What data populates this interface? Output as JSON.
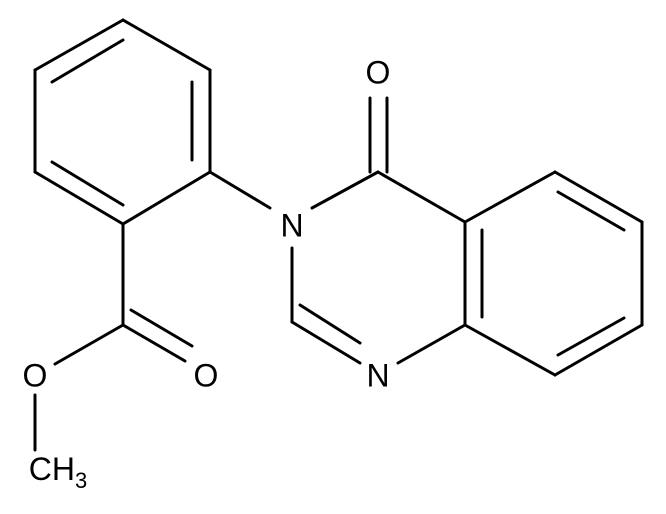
{
  "atoms": {
    "o_ketone": "O",
    "n3": "N",
    "n1": "N",
    "o_carbonyl": "O",
    "o_ester": "O",
    "methyl": {
      "main": "CH",
      "sub": "3"
    }
  }
}
